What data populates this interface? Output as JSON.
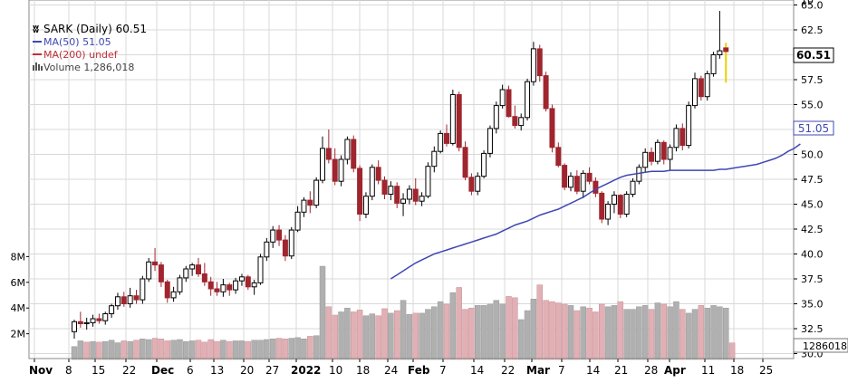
{
  "legend": {
    "title": "SARK (Daily) 60.51",
    "ma50": "MA(50) 51.05",
    "ma200": "MA(200) undef",
    "volume": "Volume 1,286,018"
  },
  "colors": {
    "up": "#000000",
    "down": "#a0252e",
    "ma50": "#3f48b0",
    "ma200": "#c0303a",
    "vol_up": "#b0b0b0",
    "vol_down": "#e0b0b5",
    "grid": "#d8d8d8",
    "last_price_box": "#e8d000"
  },
  "badges": {
    "price": "60.51",
    "ma50": "51.05",
    "volume": "1286018"
  },
  "chart_data": {
    "type": "candlestick",
    "price_axis": {
      "ticks": [
        "30.0",
        "32.5",
        "35.0",
        "37.5",
        "40.0",
        "42.5",
        "45.0",
        "47.5",
        "50.0",
        "52.5",
        "55.0",
        "57.5",
        "60.0",
        "62.5",
        "65.0"
      ],
      "range": [
        29.5,
        65.5
      ],
      "clipped_top_tick": "10"
    },
    "volume_axis": {
      "ticks": [
        "2M",
        "4M",
        "6M",
        "8M"
      ],
      "values": [
        2000000,
        4000000,
        6000000,
        8000000
      ]
    },
    "x_labels": [
      "Nov",
      "8",
      "15",
      "22",
      "Dec",
      "6",
      "13",
      "20",
      "27",
      "2022",
      "10",
      "18",
      "24",
      "Feb",
      "7",
      "14",
      "22",
      "Mar",
      "7",
      "14",
      "21",
      "28",
      "Apr",
      "11",
      "18",
      "25"
    ],
    "bold_labels": [
      "Nov",
      "Dec",
      "2022",
      "Feb",
      "Mar",
      "Apr"
    ],
    "candles": [
      [
        32.2,
        33.4,
        31.5,
        33.2
      ],
      [
        33.2,
        34.2,
        32.6,
        33.0
      ],
      [
        33.0,
        33.6,
        32.4,
        33.1
      ],
      [
        33.1,
        33.9,
        32.7,
        33.5
      ],
      [
        33.5,
        34.0,
        33.0,
        33.3
      ],
      [
        33.3,
        34.2,
        32.9,
        34.0
      ],
      [
        34.0,
        35.0,
        33.6,
        34.8
      ],
      [
        34.8,
        36.1,
        34.4,
        35.7
      ],
      [
        35.7,
        36.2,
        34.7,
        35.0
      ],
      [
        35.0,
        36.6,
        34.6,
        35.8
      ],
      [
        35.8,
        36.4,
        35.0,
        35.4
      ],
      [
        35.4,
        37.8,
        35.0,
        37.5
      ],
      [
        37.5,
        39.6,
        37.2,
        39.2
      ],
      [
        39.2,
        40.6,
        38.3,
        38.9
      ],
      [
        38.9,
        39.2,
        36.7,
        37.2
      ],
      [
        37.2,
        37.4,
        35.1,
        35.6
      ],
      [
        35.6,
        36.7,
        35.2,
        36.2
      ],
      [
        36.2,
        37.9,
        35.9,
        37.6
      ],
      [
        37.6,
        38.8,
        37.2,
        38.5
      ],
      [
        38.5,
        39.1,
        37.8,
        38.9
      ],
      [
        38.9,
        39.6,
        37.7,
        38.0
      ],
      [
        38.0,
        39.1,
        36.8,
        37.2
      ],
      [
        37.2,
        37.7,
        35.8,
        36.5
      ],
      [
        36.5,
        37.2,
        35.8,
        36.2
      ],
      [
        36.2,
        37.5,
        35.7,
        36.9
      ],
      [
        36.9,
        37.1,
        35.8,
        36.4
      ],
      [
        36.4,
        37.6,
        36.0,
        37.3
      ],
      [
        37.3,
        38.0,
        36.8,
        37.7
      ],
      [
        37.7,
        37.9,
        36.4,
        36.7
      ],
      [
        36.7,
        37.4,
        35.9,
        37.1
      ],
      [
        37.1,
        40.0,
        36.9,
        39.7
      ],
      [
        39.7,
        41.6,
        39.3,
        41.2
      ],
      [
        41.2,
        42.8,
        40.6,
        42.4
      ],
      [
        42.4,
        42.9,
        40.8,
        41.4
      ],
      [
        41.4,
        41.9,
        39.3,
        39.8
      ],
      [
        39.8,
        42.7,
        39.5,
        42.4
      ],
      [
        42.4,
        44.8,
        42.2,
        44.2
      ],
      [
        44.2,
        45.7,
        43.7,
        45.4
      ],
      [
        45.4,
        46.3,
        44.1,
        44.9
      ],
      [
        44.9,
        47.7,
        44.6,
        47.4
      ],
      [
        47.4,
        51.8,
        47.1,
        50.6
      ],
      [
        50.6,
        52.5,
        49.1,
        49.5
      ],
      [
        49.5,
        50.6,
        46.9,
        47.3
      ],
      [
        47.3,
        49.9,
        46.8,
        49.5
      ],
      [
        49.5,
        51.8,
        49.0,
        51.5
      ],
      [
        51.5,
        51.9,
        48.2,
        48.6
      ],
      [
        48.6,
        48.9,
        43.3,
        44.0
      ],
      [
        44.0,
        46.2,
        43.6,
        45.8
      ],
      [
        45.8,
        49.0,
        45.4,
        48.7
      ],
      [
        48.7,
        49.4,
        47.0,
        47.4
      ],
      [
        47.4,
        47.8,
        45.5,
        46.0
      ],
      [
        46.0,
        47.3,
        45.4,
        46.8
      ],
      [
        46.8,
        47.2,
        44.6,
        45.1
      ],
      [
        45.1,
        46.1,
        43.8,
        45.5
      ],
      [
        45.5,
        46.9,
        45.0,
        46.5
      ],
      [
        46.5,
        47.6,
        44.9,
        45.3
      ],
      [
        45.3,
        46.2,
        44.8,
        45.8
      ],
      [
        45.8,
        49.2,
        45.6,
        48.8
      ],
      [
        48.8,
        50.8,
        48.2,
        50.3
      ],
      [
        50.3,
        52.4,
        50.1,
        52.1
      ],
      [
        52.1,
        53.0,
        50.8,
        51.1
      ],
      [
        51.1,
        56.5,
        50.9,
        56.0
      ],
      [
        56.0,
        56.3,
        50.3,
        50.7
      ],
      [
        50.7,
        51.3,
        47.4,
        47.7
      ],
      [
        47.7,
        48.1,
        45.9,
        46.3
      ],
      [
        46.3,
        48.2,
        45.9,
        47.8
      ],
      [
        47.8,
        50.4,
        47.6,
        50.1
      ],
      [
        50.1,
        52.9,
        49.7,
        52.6
      ],
      [
        52.6,
        55.3,
        52.1,
        54.9
      ],
      [
        54.9,
        57.0,
        54.6,
        56.5
      ],
      [
        56.5,
        56.9,
        53.7,
        53.8
      ],
      [
        53.8,
        54.9,
        52.6,
        52.9
      ],
      [
        52.9,
        54.1,
        52.4,
        53.7
      ],
      [
        53.7,
        57.6,
        53.4,
        57.3
      ],
      [
        57.3,
        61.3,
        56.9,
        60.6
      ],
      [
        60.6,
        61.0,
        57.3,
        57.9
      ],
      [
        57.9,
        58.3,
        54.3,
        54.6
      ],
      [
        54.6,
        55.0,
        50.2,
        50.7
      ],
      [
        50.7,
        51.2,
        48.7,
        48.9
      ],
      [
        48.9,
        49.1,
        46.4,
        46.7
      ],
      [
        46.7,
        48.2,
        46.3,
        47.8
      ],
      [
        47.8,
        48.4,
        46.0,
        46.3
      ],
      [
        46.3,
        48.4,
        45.6,
        48.1
      ],
      [
        48.1,
        48.7,
        47.0,
        47.3
      ],
      [
        47.3,
        47.7,
        45.7,
        46.1
      ],
      [
        46.1,
        46.3,
        43.1,
        43.5
      ],
      [
        43.5,
        45.3,
        42.9,
        45.0
      ],
      [
        45.0,
        46.3,
        44.1,
        45.9
      ],
      [
        45.9,
        46.0,
        43.6,
        44.0
      ],
      [
        44.0,
        46.3,
        43.7,
        46.0
      ],
      [
        46.0,
        47.6,
        45.7,
        47.3
      ],
      [
        47.3,
        49.0,
        47.0,
        48.7
      ],
      [
        48.7,
        50.6,
        48.2,
        50.2
      ],
      [
        50.2,
        50.7,
        48.9,
        49.3
      ],
      [
        49.3,
        51.5,
        49.0,
        51.2
      ],
      [
        51.2,
        51.4,
        49.0,
        49.5
      ],
      [
        49.5,
        51.0,
        48.4,
        50.7
      ],
      [
        50.7,
        53.0,
        50.3,
        52.6
      ],
      [
        52.6,
        53.1,
        50.4,
        50.9
      ],
      [
        50.9,
        55.3,
        50.6,
        54.9
      ],
      [
        54.9,
        58.2,
        54.6,
        57.6
      ],
      [
        57.6,
        57.9,
        55.4,
        55.8
      ],
      [
        55.8,
        58.4,
        55.4,
        58.1
      ],
      [
        58.1,
        60.3,
        57.8,
        60.0
      ],
      [
        60.0,
        64.4,
        59.6,
        60.4
      ]
    ],
    "last_candle": {
      "open": 60.4,
      "high": 61.2,
      "low": 57.2,
      "close": 60.51
    },
    "ma50": {
      "start_index": 51,
      "values": [
        37.5,
        37.9,
        38.3,
        38.7,
        39.1,
        39.4,
        39.7,
        40.0,
        40.2,
        40.4,
        40.6,
        40.8,
        41.0,
        41.2,
        41.4,
        41.6,
        41.8,
        42.0,
        42.3,
        42.6,
        42.9,
        43.1,
        43.3,
        43.6,
        43.9,
        44.1,
        44.3,
        44.5,
        44.8,
        45.1,
        45.4,
        45.7,
        46.1,
        46.5,
        46.8,
        47.1,
        47.4,
        47.7,
        47.9,
        48.0,
        48.1,
        48.2,
        48.3,
        48.3,
        48.3,
        48.4,
        48.4,
        48.4,
        48.4,
        48.4,
        48.4,
        48.4,
        48.4,
        48.5,
        48.5,
        48.6,
        48.7,
        48.8,
        48.9,
        49.0,
        49.2,
        49.4,
        49.6,
        49.9,
        50.3,
        50.6,
        51.05
      ]
    },
    "volume": [
      1000000,
      1450000,
      1350000,
      1400000,
      1350000,
      1400000,
      1500000,
      1300000,
      1450000,
      1400000,
      1500000,
      1600000,
      1550000,
      1650000,
      1600000,
      1450000,
      1500000,
      1550000,
      1400000,
      1450000,
      1500000,
      1350000,
      1550000,
      1400000,
      1500000,
      1400000,
      1450000,
      1450000,
      1400000,
      1500000,
      1500000,
      1550000,
      1600000,
      1650000,
      1600000,
      1650000,
      1700000,
      1600000,
      1800000,
      1850000,
      7250000,
      4100000,
      3450000,
      3700000,
      4000000,
      3700000,
      3850000,
      3400000,
      3550000,
      3400000,
      3950000,
      3600000,
      3800000,
      4600000,
      3500000,
      3600000,
      3600000,
      3900000,
      4100000,
      4500000,
      4300000,
      5200000,
      5600000,
      3900000,
      4000000,
      4200000,
      4200000,
      4300000,
      4600000,
      4300000,
      4900000,
      4800000,
      3100000,
      3800000,
      4700000,
      5800000,
      4600000,
      4500000,
      4400000,
      4300000,
      4200000,
      3800000,
      4100000,
      4000000,
      3700000,
      4300000,
      4100000,
      4200000,
      4500000,
      3900000,
      3900000,
      4100000,
      4200000,
      3900000,
      4400000,
      4300000,
      4100000,
      4500000,
      3900000,
      3600000,
      3900000,
      4200000,
      4000000,
      4200000,
      4100000,
      4000000,
      1286018
    ],
    "volume_dir": [
      1,
      1,
      0,
      1,
      0,
      1,
      1,
      1,
      0,
      1,
      0,
      1,
      1,
      0,
      0,
      0,
      1,
      1,
      1,
      1,
      0,
      0,
      0,
      0,
      1,
      0,
      1,
      1,
      0,
      1,
      1,
      1,
      1,
      0,
      0,
      1,
      1,
      1,
      0,
      1,
      1,
      0,
      0,
      1,
      1,
      0,
      0,
      1,
      1,
      0,
      0,
      1,
      0,
      1,
      1,
      0,
      1,
      1,
      1,
      1,
      0,
      1,
      0,
      0,
      0,
      1,
      1,
      1,
      1,
      1,
      0,
      0,
      1,
      1,
      1,
      0,
      0,
      0,
      0,
      0,
      1,
      0,
      1,
      0,
      0,
      0,
      1,
      1,
      0,
      1,
      1,
      1,
      1,
      0,
      1,
      0,
      1,
      1,
      0,
      1,
      1,
      0,
      1,
      1,
      1,
      1,
      0
    ]
  }
}
